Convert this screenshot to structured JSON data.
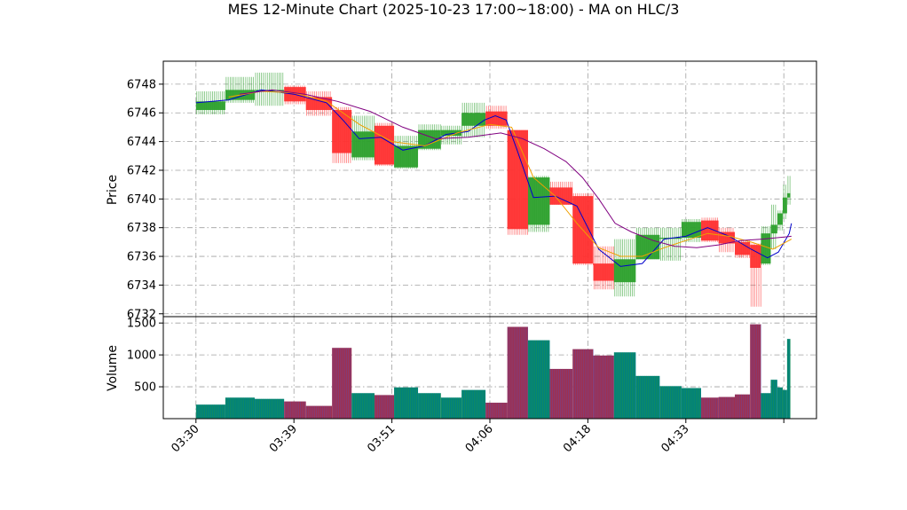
{
  "chart_data": {
    "type": "candlestick",
    "title": "MES 12-Minute Chart (2025-10-23 17:00~18:00) - MA on HLC/3",
    "price_panel": {
      "ylabel": "Price",
      "ylim": [
        6731.8,
        6749.6
      ],
      "yticks": [
        6732,
        6734,
        6736,
        6738,
        6740,
        6742,
        6744,
        6746,
        6748
      ]
    },
    "volume_panel": {
      "ylabel": "Volume",
      "ylim": [
        0,
        1600
      ],
      "yticks": [
        500,
        1000,
        1500
      ]
    },
    "x_ticks": [
      {
        "label": "03:30",
        "x": 0
      },
      {
        "label": "03:39",
        "x": 9
      },
      {
        "label": "03:51",
        "x": 18
      },
      {
        "label": "04:06",
        "x": 27
      },
      {
        "label": "04:18",
        "x": 36
      },
      {
        "label": "04:33",
        "x": 45
      },
      {
        "label": "",
        "x": 54
      }
    ],
    "xlim": [
      -3,
      57
    ],
    "colors": {
      "up": "#2ca02c",
      "down": "#ff3030",
      "vol_up": "#008080",
      "vol_down": "#a0304e",
      "ma_fast": "#0000cc",
      "ma_mid": "#f0a000",
      "ma_slow": "#800080",
      "grid": "#a0a0a0"
    },
    "candles": [
      {
        "x0": 0,
        "x1": 2.7,
        "o": 6746.2,
        "h": 6747.5,
        "l": 6745.9,
        "c": 6746.8,
        "v": 220
      },
      {
        "x0": 2.7,
        "x1": 5.4,
        "o": 6746.9,
        "h": 6748.5,
        "l": 6746.7,
        "c": 6747.6,
        "v": 330
      },
      {
        "x0": 5.4,
        "x1": 8.1,
        "o": 6747.6,
        "h": 6748.8,
        "l": 6746.5,
        "c": 6747.6,
        "v": 310
      },
      {
        "x0": 8.1,
        "x1": 10.1,
        "o": 6747.8,
        "h": 6747.9,
        "l": 6746.6,
        "c": 6746.8,
        "v": 270
      },
      {
        "x0": 10.1,
        "x1": 12.5,
        "o": 6747.1,
        "h": 6747.5,
        "l": 6745.8,
        "c": 6746.2,
        "v": 200
      },
      {
        "x0": 12.5,
        "x1": 14.3,
        "o": 6746.2,
        "h": 6746.4,
        "l": 6742.5,
        "c": 6743.2,
        "v": 1110
      },
      {
        "x0": 14.3,
        "x1": 16.4,
        "o": 6742.9,
        "h": 6745.8,
        "l": 6742.7,
        "c": 6744.7,
        "v": 400
      },
      {
        "x0": 16.4,
        "x1": 18.2,
        "o": 6745.1,
        "h": 6745.3,
        "l": 6742.3,
        "c": 6742.4,
        "v": 370
      },
      {
        "x0": 18.2,
        "x1": 20.4,
        "o": 6742.2,
        "h": 6744.4,
        "l": 6742.1,
        "c": 6743.7,
        "v": 490
      },
      {
        "x0": 20.4,
        "x1": 22.5,
        "o": 6743.5,
        "h": 6745.2,
        "l": 6743.4,
        "c": 6744.8,
        "v": 400
      },
      {
        "x0": 22.5,
        "x1": 24.4,
        "o": 6744.4,
        "h": 6745.1,
        "l": 6743.8,
        "c": 6744.8,
        "v": 330
      },
      {
        "x0": 24.4,
        "x1": 26.6,
        "o": 6745.1,
        "h": 6746.7,
        "l": 6744.3,
        "c": 6746.0,
        "v": 450
      },
      {
        "x0": 26.6,
        "x1": 28.6,
        "o": 6746.1,
        "h": 6746.5,
        "l": 6744.9,
        "c": 6745.1,
        "v": 250
      },
      {
        "x0": 28.6,
        "x1": 30.5,
        "o": 6744.8,
        "h": 6744.8,
        "l": 6737.5,
        "c": 6737.9,
        "v": 1440
      },
      {
        "x0": 30.5,
        "x1": 32.5,
        "o": 6738.2,
        "h": 6741.6,
        "l": 6737.7,
        "c": 6741.5,
        "v": 1230
      },
      {
        "x0": 32.5,
        "x1": 34.6,
        "o": 6740.8,
        "h": 6741.2,
        "l": 6739.6,
        "c": 6739.6,
        "v": 780
      },
      {
        "x0": 34.6,
        "x1": 36.5,
        "o": 6740.2,
        "h": 6740.4,
        "l": 6735.4,
        "c": 6735.5,
        "v": 1090
      },
      {
        "x0": 36.5,
        "x1": 38.4,
        "o": 6735.5,
        "h": 6736.7,
        "l": 6733.7,
        "c": 6734.3,
        "v": 990
      },
      {
        "x0": 38.4,
        "x1": 40.4,
        "o": 6734.2,
        "h": 6737.2,
        "l": 6733.2,
        "c": 6735.8,
        "v": 1040
      },
      {
        "x0": 40.4,
        "x1": 42.6,
        "o": 6735.8,
        "h": 6738.0,
        "l": 6735.8,
        "c": 6737.5,
        "v": 670
      },
      {
        "x0": 42.6,
        "x1": 44.6,
        "o": 6737.3,
        "h": 6738.0,
        "l": 6735.7,
        "c": 6737.3,
        "v": 510
      },
      {
        "x0": 44.6,
        "x1": 46.4,
        "o": 6737.3,
        "h": 6738.6,
        "l": 6737.0,
        "c": 6738.4,
        "v": 480
      },
      {
        "x0": 46.4,
        "x1": 48.0,
        "o": 6738.5,
        "h": 6738.7,
        "l": 6737.0,
        "c": 6737.1,
        "v": 330
      },
      {
        "x0": 48.0,
        "x1": 49.5,
        "o": 6737.7,
        "h": 6738.0,
        "l": 6736.3,
        "c": 6736.9,
        "v": 340
      },
      {
        "x0": 49.5,
        "x1": 50.9,
        "o": 6737.0,
        "h": 6737.1,
        "l": 6735.9,
        "c": 6736.1,
        "v": 380
      },
      {
        "x0": 50.9,
        "x1": 51.9,
        "o": 6736.8,
        "h": 6736.9,
        "l": 6732.5,
        "c": 6735.2,
        "v": 1480
      },
      {
        "x0": 51.9,
        "x1": 52.8,
        "o": 6735.5,
        "h": 6738.1,
        "l": 6735.4,
        "c": 6737.6,
        "v": 400
      },
      {
        "x0": 52.8,
        "x1": 53.4,
        "o": 6737.6,
        "h": 6739.6,
        "l": 6736.5,
        "c": 6738.2,
        "v": 610
      },
      {
        "x0": 53.4,
        "x1": 53.9,
        "o": 6738.2,
        "h": 6739.2,
        "l": 6737.8,
        "c": 6739.0,
        "v": 490
      },
      {
        "x0": 53.9,
        "x1": 54.3,
        "o": 6739.0,
        "h": 6741.0,
        "l": 6738.6,
        "c": 6740.1,
        "v": 450
      },
      {
        "x0": 54.3,
        "x1": 54.6,
        "o": 6740.1,
        "h": 6741.6,
        "l": 6739.6,
        "c": 6740.4,
        "v": 1250
      }
    ],
    "ma_lines": [
      {
        "color": "#0000cc",
        "points": [
          [
            0,
            6746.7
          ],
          [
            3,
            6746.9
          ],
          [
            6,
            6747.6
          ],
          [
            9,
            6747.3
          ],
          [
            12,
            6746.7
          ],
          [
            13.5,
            6745.5
          ],
          [
            15,
            6744.2
          ],
          [
            17,
            6744.3
          ],
          [
            19,
            6743.4
          ],
          [
            21,
            6743.7
          ],
          [
            23,
            6744.5
          ],
          [
            25,
            6744.7
          ],
          [
            26.5,
            6745.5
          ],
          [
            27.5,
            6745.8
          ],
          [
            28.5,
            6745.5
          ],
          [
            29.5,
            6743.4
          ],
          [
            31,
            6740.1
          ],
          [
            33,
            6740.2
          ],
          [
            35,
            6739.5
          ],
          [
            37,
            6736.5
          ],
          [
            39,
            6735.3
          ],
          [
            41,
            6735.5
          ],
          [
            43,
            6737.2
          ],
          [
            45,
            6737.4
          ],
          [
            47,
            6738.0
          ],
          [
            49,
            6737.4
          ],
          [
            51,
            6736.5
          ],
          [
            52.5,
            6735.9
          ],
          [
            53.5,
            6736.3
          ],
          [
            54.5,
            6737.6
          ],
          [
            54.7,
            6738.3
          ]
        ]
      },
      {
        "color": "#f0a000",
        "points": [
          [
            3,
            6747.1
          ],
          [
            6,
            6747.5
          ],
          [
            9,
            6747.4
          ],
          [
            12,
            6746.8
          ],
          [
            15,
            6745.2
          ],
          [
            18,
            6744.0
          ],
          [
            21,
            6743.7
          ],
          [
            24,
            6744.6
          ],
          [
            27,
            6745.2
          ],
          [
            29,
            6745.0
          ],
          [
            31,
            6741.5
          ],
          [
            33,
            6740.2
          ],
          [
            35,
            6738.3
          ],
          [
            37,
            6736.6
          ],
          [
            39,
            6736.0
          ],
          [
            41,
            6736.0
          ],
          [
            43,
            6736.6
          ],
          [
            45,
            6737.1
          ],
          [
            47,
            6737.6
          ],
          [
            49,
            6737.4
          ],
          [
            51,
            6737.0
          ],
          [
            53,
            6736.5
          ],
          [
            54.7,
            6737.2
          ]
        ]
      },
      {
        "color": "#800080",
        "points": [
          [
            4,
            6747.3
          ],
          [
            7,
            6747.6
          ],
          [
            10,
            6747.3
          ],
          [
            13,
            6746.8
          ],
          [
            16,
            6746.1
          ],
          [
            19,
            6745.0
          ],
          [
            22,
            6744.2
          ],
          [
            25,
            6744.3
          ],
          [
            28,
            6744.6
          ],
          [
            30,
            6744.2
          ],
          [
            32,
            6743.5
          ],
          [
            34,
            6742.6
          ],
          [
            35.5,
            6741.5
          ],
          [
            37,
            6740.0
          ],
          [
            38.5,
            6738.3
          ],
          [
            40,
            6737.7
          ],
          [
            42,
            6737.1
          ],
          [
            44,
            6736.7
          ],
          [
            46,
            6736.6
          ],
          [
            48,
            6736.8
          ],
          [
            50,
            6737.1
          ],
          [
            52,
            6737.2
          ],
          [
            54.7,
            6737.4
          ]
        ]
      }
    ]
  }
}
